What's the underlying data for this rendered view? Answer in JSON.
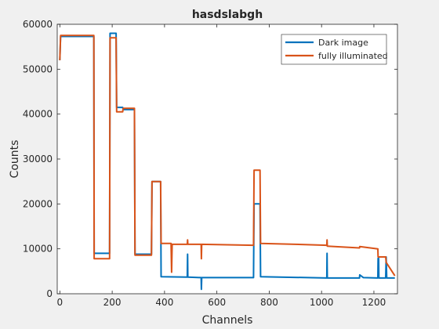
{
  "chart_data": {
    "type": "line",
    "title": "hasdslabgh",
    "xlabel": "Channels",
    "ylabel": "Counts",
    "xlim": [
      -10,
      1290
    ],
    "ylim": [
      0,
      60000
    ],
    "xticks": [
      0,
      200,
      400,
      600,
      800,
      1000,
      1200
    ],
    "yticks": [
      0,
      10000,
      20000,
      30000,
      40000,
      50000,
      60000
    ],
    "grid": false,
    "legend_position": "top-right",
    "series": [
      {
        "name": "Dark image",
        "color": "#0072BD",
        "points": [
          [
            0,
            52000
          ],
          [
            3,
            57300
          ],
          [
            130,
            57300
          ],
          [
            131,
            9000
          ],
          [
            190,
            9000
          ],
          [
            192,
            58000
          ],
          [
            215,
            58000
          ],
          [
            217,
            41500
          ],
          [
            240,
            41500
          ],
          [
            242,
            41000
          ],
          [
            285,
            41000
          ],
          [
            287,
            8800
          ],
          [
            350,
            8800
          ],
          [
            352,
            25000
          ],
          [
            385,
            25000
          ],
          [
            387,
            3800
          ],
          [
            487,
            3700
          ],
          [
            488,
            8800
          ],
          [
            489,
            3700
          ],
          [
            540,
            3600
          ],
          [
            541,
            1000
          ],
          [
            542,
            3600
          ],
          [
            740,
            3600
          ],
          [
            742,
            20000
          ],
          [
            765,
            20000
          ],
          [
            767,
            3800
          ],
          [
            1020,
            3500
          ],
          [
            1021,
            9000
          ],
          [
            1022,
            3500
          ],
          [
            1145,
            3500
          ],
          [
            1146,
            4200
          ],
          [
            1160,
            3600
          ],
          [
            1215,
            3500
          ],
          [
            1216,
            7900
          ],
          [
            1218,
            7900
          ],
          [
            1219,
            3500
          ],
          [
            1245,
            3500
          ],
          [
            1247,
            8200
          ],
          [
            1249,
            3500
          ],
          [
            1280,
            3500
          ]
        ]
      },
      {
        "name": "fully illuminated",
        "color": "#D95319",
        "points": [
          [
            0,
            52000
          ],
          [
            3,
            57500
          ],
          [
            130,
            57500
          ],
          [
            131,
            7800
          ],
          [
            190,
            7800
          ],
          [
            192,
            57000
          ],
          [
            215,
            57000
          ],
          [
            217,
            40500
          ],
          [
            240,
            40500
          ],
          [
            242,
            41300
          ],
          [
            285,
            41300
          ],
          [
            287,
            8600
          ],
          [
            350,
            8600
          ],
          [
            352,
            25000
          ],
          [
            385,
            25000
          ],
          [
            387,
            11200
          ],
          [
            425,
            11200
          ],
          [
            427,
            4800
          ],
          [
            429,
            11000
          ],
          [
            487,
            11000
          ],
          [
            488,
            12000
          ],
          [
            489,
            11000
          ],
          [
            540,
            11000
          ],
          [
            541,
            7800
          ],
          [
            542,
            11000
          ],
          [
            740,
            10800
          ],
          [
            742,
            27500
          ],
          [
            765,
            27500
          ],
          [
            767,
            11200
          ],
          [
            900,
            11000
          ],
          [
            1020,
            10800
          ],
          [
            1021,
            12000
          ],
          [
            1022,
            10600
          ],
          [
            1145,
            10200
          ],
          [
            1146,
            10500
          ],
          [
            1215,
            10000
          ],
          [
            1216,
            8200
          ],
          [
            1245,
            8200
          ],
          [
            1247,
            7000
          ],
          [
            1280,
            4000
          ]
        ]
      }
    ]
  }
}
